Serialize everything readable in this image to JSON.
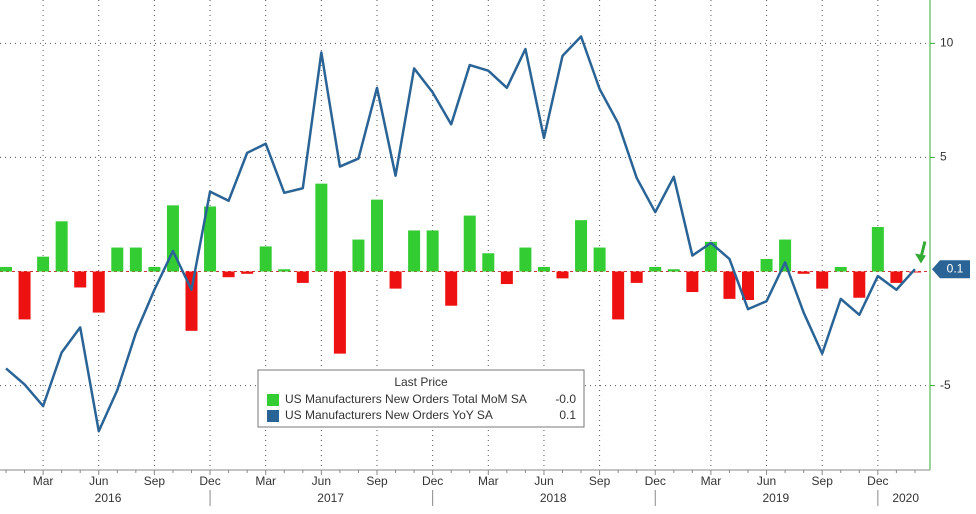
{
  "chart_data": {
    "type": "combo",
    "categories": [
      null,
      null,
      "Mar",
      null,
      null,
      "Jun",
      null,
      null,
      "Sep",
      null,
      null,
      "Dec",
      null,
      null,
      "Mar",
      null,
      null,
      "Jun",
      null,
      null,
      "Sep",
      null,
      null,
      "Dec",
      null,
      null,
      "Mar",
      null,
      null,
      "Jun",
      null,
      null,
      "Sep",
      null,
      null,
      "Dec",
      null,
      null,
      "Mar",
      null,
      null,
      "Jun",
      null,
      null,
      "Sep",
      null,
      null,
      "Dec",
      null,
      null
    ],
    "years": [
      "2016",
      "2017",
      "2018",
      "2019",
      "2020"
    ],
    "legend_title": "Last Price",
    "legend": "lower-center",
    "ylim": [
      -8.7,
      11.9
    ],
    "yticks": [
      -5,
      5,
      10
    ],
    "grid": true,
    "series": [
      {
        "name": "US Manufacturers New Orders Total MoM SA",
        "type": "bar",
        "color": "#33cc33",
        "negative_color": "#ee1111",
        "last_price": "-0.0",
        "values": [
          0.2,
          -2.1,
          0.65,
          2.2,
          -0.7,
          -1.8,
          1.05,
          1.05,
          0.2,
          2.9,
          -2.6,
          2.85,
          -0.25,
          -0.1,
          1.1,
          0.1,
          -0.5,
          3.85,
          -3.6,
          1.4,
          3.15,
          -0.75,
          1.8,
          1.8,
          -1.5,
          2.45,
          0.8,
          -0.55,
          1.05,
          0.2,
          -0.3,
          2.25,
          1.05,
          -2.1,
          -0.5,
          0.2,
          0.1,
          -0.9,
          1.3,
          -1.2,
          -1.25,
          0.55,
          1.4,
          -0.1,
          -0.75,
          0.2,
          -1.15,
          1.95,
          -0.5,
          -0.02
        ]
      },
      {
        "name": "US Manufacturers New Orders YoY SA",
        "type": "line",
        "color": "#2a6496",
        "last_price": "0.1",
        "values": [
          -4.25,
          -4.95,
          -5.9,
          -3.55,
          -2.45,
          -7.0,
          -5.2,
          -2.7,
          -0.8,
          0.9,
          -0.8,
          3.5,
          3.1,
          5.2,
          5.6,
          3.45,
          3.65,
          9.6,
          4.6,
          4.95,
          8.05,
          4.2,
          8.9,
          7.85,
          6.45,
          9.05,
          8.8,
          8.05,
          9.75,
          5.85,
          9.45,
          10.3,
          8.0,
          6.5,
          4.1,
          2.6,
          4.15,
          0.7,
          1.25,
          0.55,
          -1.65,
          -1.3,
          0.4,
          -1.8,
          -3.6,
          -1.2,
          -1.9,
          -0.2,
          -0.8,
          0.1
        ]
      }
    ]
  }
}
